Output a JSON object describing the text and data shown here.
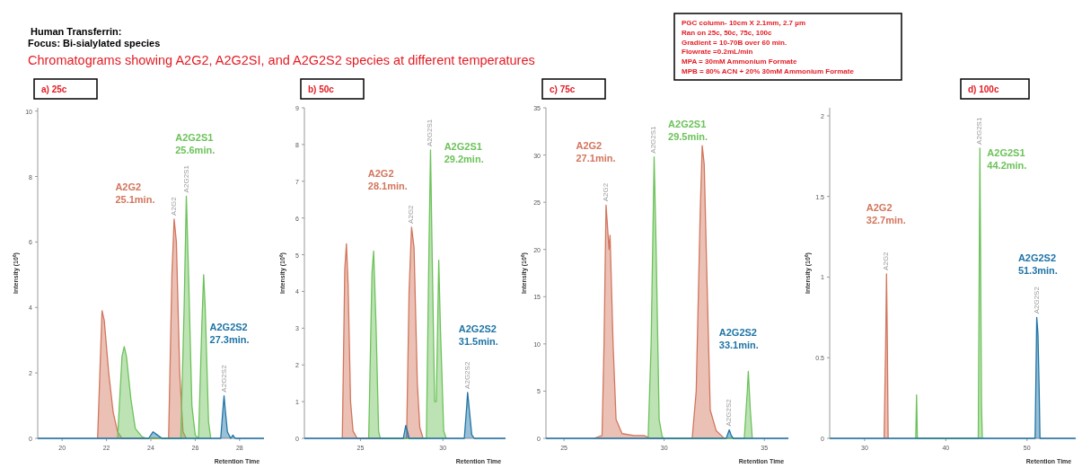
{
  "chart_data": [
    {
      "type": "other",
      "title": "Human Transferrin:",
      "subtitle": "Focus: Bi-sialylated species",
      "annotations": [
        "Chromatograms showing A2G2, A2G2SI, and A2G2S2 species at different temperatures"
      ]
    },
    {
      "type": "other",
      "annotations": [
        "PGC column- 10cm X 2.1mm, 2.7 µm",
        "Ran on 25c, 50c, 75c, 100c",
        "Gradient = 10-70B over 60 min.",
        "Flowrate =0.2mL/min",
        "MPA = 30mM Ammonium Formate",
        "MPB = 80% ACN + 20% 30mM Ammonium Formate"
      ]
    },
    {
      "type": "area",
      "title": "a) 25c",
      "xlabel": "Retention Time",
      "ylabel": "Intensity (10$^{6}$)",
      "xlim": [
        18.9,
        29.1
      ],
      "xticks": [
        20,
        22,
        24,
        26,
        28
      ],
      "ylim": [
        0,
        10.1
      ],
      "yticks": [
        0,
        2,
        4,
        6,
        8,
        10
      ],
      "series": [
        {
          "name": "A2G2",
          "color": "#d2765d",
          "x": [
            21.6,
            21.8,
            21.9,
            22.1,
            22.3,
            22.5,
            22.7,
            24.8,
            24.95,
            25.05,
            25.15,
            25.3,
            25.45,
            25.6
          ],
          "values": [
            0,
            3.9,
            3.6,
            2.0,
            0.8,
            0.2,
            0,
            0,
            5.0,
            6.7,
            6.0,
            2.0,
            0.2,
            0
          ]
        },
        {
          "name": "A2G2S1",
          "color": "#6cc25a",
          "x": [
            22.5,
            22.7,
            22.8,
            22.9,
            23.1,
            23.3,
            23.6,
            23.8,
            25.35,
            25.5,
            25.6,
            25.7,
            25.85,
            26.0,
            26.15,
            26.3,
            26.38,
            26.45,
            26.6,
            26.7
          ],
          "values": [
            0,
            2.5,
            2.8,
            2.5,
            1.2,
            0.3,
            0.05,
            0,
            0,
            4,
            7.4,
            5,
            1,
            0.1,
            0,
            3.5,
            5.0,
            4,
            0.5,
            0
          ]
        },
        {
          "name": "A2G2S2",
          "color": "#1f74a6",
          "x": [
            18.9,
            23.9,
            24.1,
            24.3,
            24.5,
            27.15,
            27.25,
            27.3,
            27.35,
            27.45,
            27.6,
            27.7,
            27.8,
            29.1
          ],
          "values": [
            0,
            0,
            0.2,
            0.1,
            0,
            0,
            0.9,
            1.3,
            0.9,
            0.2,
            0,
            0.1,
            0,
            0
          ]
        }
      ],
      "annotations": [
        "25.1min.",
        "25.6min.",
        "27.3min."
      ]
    },
    {
      "type": "area",
      "title": "b) 50c",
      "xlabel": "Retention Time",
      "ylabel": "Intensity (10$^{6}$)",
      "xlim": [
        21.6,
        33.8
      ],
      "xticks": [
        25,
        30
      ],
      "ylim": [
        0,
        9
      ],
      "yticks": [
        0,
        1,
        2,
        3,
        4,
        5,
        6,
        7,
        8,
        9
      ],
      "series": [
        {
          "name": "A2G2",
          "color": "#d2765d",
          "x": [
            23.9,
            24.05,
            24.15,
            24.25,
            24.4,
            24.55,
            24.8,
            27.8,
            27.95,
            28.1,
            28.25,
            28.45,
            28.6,
            28.8
          ],
          "values": [
            0,
            4.6,
            5.3,
            4.2,
            1,
            0.2,
            0,
            0,
            4,
            5.75,
            5.2,
            1.5,
            0.3,
            0
          ]
        },
        {
          "name": "A2G2S1",
          "color": "#6cc25a",
          "x": [
            25.5,
            25.7,
            25.8,
            25.95,
            26.1,
            26.2,
            29.0,
            29.15,
            29.25,
            29.35,
            29.5,
            29.6,
            29.75,
            29.85,
            30.05,
            30.2
          ],
          "values": [
            0,
            4.5,
            5.1,
            3,
            0.2,
            0,
            0,
            5,
            7.85,
            5,
            1,
            1,
            4.85,
            3,
            0.2,
            0
          ]
        },
        {
          "name": "A2G2S2",
          "color": "#1f74a6",
          "x": [
            21.6,
            27.6,
            27.75,
            27.85,
            27.95,
            31.3,
            31.45,
            31.5,
            31.6,
            31.75,
            31.9,
            33.8
          ],
          "values": [
            0,
            0,
            0.35,
            0.2,
            0,
            0,
            0.9,
            1.25,
            0.8,
            0.1,
            0,
            0
          ]
        }
      ],
      "annotations": [
        "28.1min.",
        "29.2min.",
        "31.5min."
      ]
    },
    {
      "type": "area",
      "title": "c) 75c",
      "xlabel": "Retention Time",
      "ylabel": "Intensity (10$^{6}$)",
      "xlim": [
        24.1,
        36.2
      ],
      "xticks": [
        25,
        30,
        35
      ],
      "ylim": [
        0,
        35
      ],
      "yticks": [
        0,
        5,
        10,
        15,
        20,
        25,
        30,
        35
      ],
      "series": [
        {
          "name": "A2G2",
          "color": "#d2765d",
          "x": [
            26.5,
            26.9,
            27.0,
            27.1,
            27.25,
            27.3,
            27.45,
            27.6,
            27.9,
            28.5,
            29.0,
            29.3,
            31.4,
            31.6,
            31.8,
            31.9,
            32.0,
            32.1,
            32.3,
            32.6,
            32.9,
            33.0
          ],
          "values": [
            0,
            0.3,
            10,
            24.7,
            20,
            21.5,
            10,
            2,
            0.5,
            0.3,
            0.3,
            0,
            0,
            5,
            24,
            31,
            29,
            20,
            3,
            0.8,
            0.2,
            0
          ]
        },
        {
          "name": "A2G2S1",
          "color": "#6cc25a",
          "x": [
            29.2,
            29.35,
            29.5,
            29.6,
            29.75,
            29.9,
            30.0,
            34.0,
            34.15,
            34.2,
            34.3,
            34.4
          ],
          "values": [
            0,
            10,
            29.8,
            20,
            2,
            0.2,
            0,
            0,
            5,
            7.1,
            3,
            0
          ]
        },
        {
          "name": "A2G2S2",
          "color": "#1f74a6",
          "x": [
            24.1,
            33.1,
            33.25,
            33.35,
            33.45,
            36.2
          ],
          "values": [
            0,
            0,
            0.9,
            0.3,
            0,
            0
          ]
        }
      ],
      "annotations": [
        "27.1min.",
        "29.5min.",
        "33.1min."
      ]
    },
    {
      "type": "area",
      "title": "d) 100c",
      "xlabel": "Retention Time",
      "ylabel": "Intensity (10$^{6}$)",
      "xlim": [
        25.7,
        56
      ],
      "xticks": [
        30,
        40,
        50
      ],
      "ylim": [
        0,
        2.05
      ],
      "yticks": [
        0,
        0.5,
        1,
        1.5,
        2
      ],
      "series": [
        {
          "name": "A2G2",
          "color": "#d2765d",
          "x": [
            32.4,
            32.6,
            32.7,
            32.8,
            32.9
          ],
          "values": [
            0,
            0.6,
            1.02,
            0.6,
            0
          ]
        },
        {
          "name": "A2G2S1",
          "color": "#6cc25a",
          "x": [
            36.3,
            36.4,
            36.5,
            44.0,
            44.2,
            44.3,
            44.4,
            44.5
          ],
          "values": [
            0,
            0.27,
            0,
            0,
            1.8,
            1.0,
            0.2,
            0
          ]
        },
        {
          "name": "A2G2S2",
          "color": "#1f74a6",
          "x": [
            25.7,
            51.0,
            51.2,
            51.35,
            51.5,
            51.6,
            56
          ],
          "values": [
            0,
            0,
            0.75,
            0.65,
            0.3,
            0,
            0
          ]
        }
      ],
      "annotations": [
        "32.7min.",
        "44.2min.",
        "51.3min."
      ]
    }
  ]
}
